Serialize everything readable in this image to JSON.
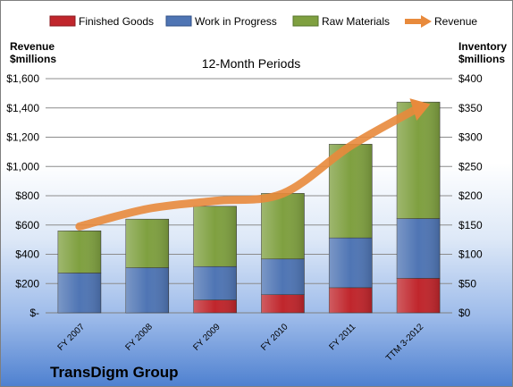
{
  "company": "TransDigm Group",
  "chart_data": {
    "type": "bar",
    "stacked": true,
    "subtitle": "12-Month Periods",
    "categories": [
      "FY 2007",
      "FY 2008",
      "FY 2009",
      "FY 2010",
      "FY 2011",
      "TTM 3-2012"
    ],
    "series": [
      {
        "name": "Finished Goods",
        "axis": "right",
        "color": "#c0262c",
        "values": [
          0,
          0,
          22,
          31,
          43,
          59
        ]
      },
      {
        "name": "Work in Progress",
        "axis": "right",
        "color": "#4f75b4",
        "values": [
          68,
          77,
          57,
          61,
          85,
          102
        ]
      },
      {
        "name": "Raw Materials",
        "axis": "right",
        "color": "#7fa040",
        "values": [
          72,
          83,
          103,
          112,
          160,
          199
        ]
      }
    ],
    "line": {
      "name": "Revenue",
      "axis": "left",
      "color": "#e88a3c",
      "values": [
        590,
        710,
        765,
        815,
        1140,
        1400
      ]
    },
    "left_axis": {
      "label_line1": "Revenue",
      "label_line2": "$millions",
      "min": 0,
      "max": 1600,
      "ticks": [
        "$-",
        "$200",
        "$400",
        "$600",
        "$800",
        "$1,000",
        "$1,200",
        "$1,400",
        "$1,600"
      ]
    },
    "right_axis": {
      "label_line1": "Inventory",
      "label_line2": "$millions",
      "min": 0,
      "max": 400,
      "ticks": [
        "$0",
        "$50",
        "$100",
        "$150",
        "$200",
        "$250",
        "$300",
        "$350",
        "$400"
      ]
    },
    "grid": true,
    "legend_position": "top"
  }
}
